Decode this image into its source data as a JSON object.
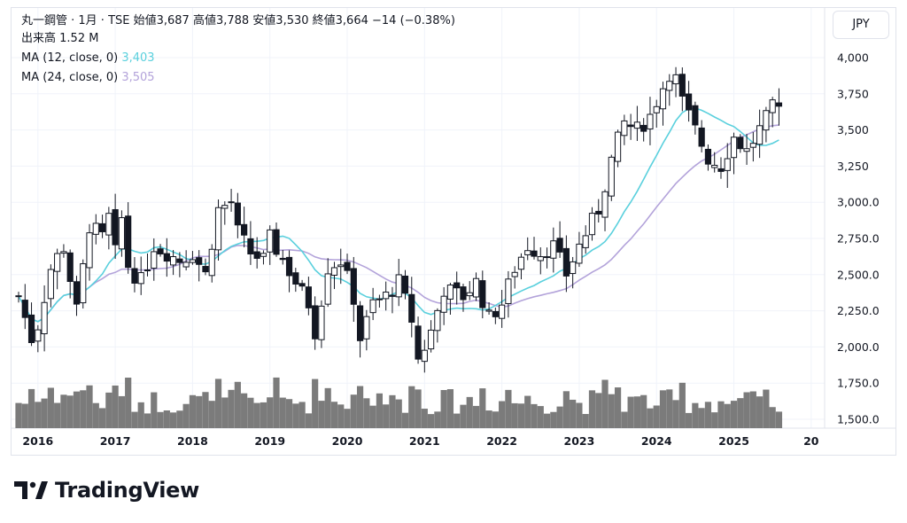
{
  "legend": {
    "main": "丸一鋼管 · 1月 · TSE  始値3,687  高値3,788  安値3,530  終値3,664  −14 (−0.38%)",
    "volume_label": "出来高",
    "volume_value": "1.52 M",
    "ma12_label": "MA (12, close, 0)",
    "ma12_value": "3,403",
    "ma24_label": "MA (24, close, 0)",
    "ma24_value": "3,505"
  },
  "currency": "JPY",
  "brand": {
    "name": "TradingView"
  },
  "colors": {
    "up": "#131722",
    "down": "#131722",
    "ma12": "#5ad0dd",
    "ma24": "#b3a3da",
    "volume": "#7b7b7b",
    "grid": "#f0f3fa"
  },
  "chart_data": {
    "type": "candlestick",
    "interval": "1M",
    "ylim": [
      1500,
      4000
    ],
    "y_ticks": [
      "4,000",
      "3,750",
      "3,500",
      "3,250",
      "3,000.0",
      "2,750.0",
      "2,500.0",
      "2,250.0",
      "2,000.0",
      "1,750.0",
      "1,500.0"
    ],
    "y_tick_values": [
      4000,
      3750,
      3500,
      3250,
      3000,
      2750,
      2500,
      2250,
      2000,
      1750,
      1500
    ],
    "x_ticks": [
      "2016",
      "2017",
      "2018",
      "2019",
      "2020",
      "2021",
      "2022",
      "2023",
      "2024",
      "2025",
      "20"
    ],
    "start_year": 2015,
    "start_month": 10,
    "ohlc_anchors": [
      [
        2015.75,
        2350
      ],
      [
        2015.92,
        2050
      ],
      [
        2016.0,
        2150
      ],
      [
        2016.17,
        2550
      ],
      [
        2016.33,
        2700
      ],
      [
        2016.5,
        2250
      ],
      [
        2016.67,
        2850
      ],
      [
        2016.83,
        2750
      ],
      [
        2016.92,
        2900
      ],
      [
        2017.0,
        2650
      ],
      [
        2017.08,
        2900
      ],
      [
        2017.17,
        2550
      ],
      [
        2017.33,
        2450
      ],
      [
        2017.5,
        2700
      ],
      [
        2017.67,
        2650
      ],
      [
        2017.83,
        2600
      ],
      [
        2018.0,
        2650
      ],
      [
        2018.17,
        2500
      ],
      [
        2018.33,
        2950
      ],
      [
        2018.5,
        3000
      ],
      [
        2018.58,
        2800
      ],
      [
        2018.75,
        2650
      ],
      [
        2018.92,
        2600
      ],
      [
        2019.0,
        2750
      ],
      [
        2019.17,
        2600
      ],
      [
        2019.33,
        2450
      ],
      [
        2019.5,
        2300
      ],
      [
        2019.58,
        2100
      ],
      [
        2019.75,
        2550
      ],
      [
        2019.92,
        2600
      ],
      [
        2020.08,
        2350
      ],
      [
        2020.17,
        2050
      ],
      [
        2020.33,
        2300
      ],
      [
        2020.5,
        2350
      ],
      [
        2020.67,
        2450
      ],
      [
        2020.83,
        2200
      ],
      [
        2020.92,
        1900
      ],
      [
        2021.08,
        2100
      ],
      [
        2021.25,
        2400
      ],
      [
        2021.5,
        2350
      ],
      [
        2021.67,
        2450
      ],
      [
        2021.83,
        2200
      ],
      [
        2022.0,
        2300
      ],
      [
        2022.17,
        2550
      ],
      [
        2022.33,
        2700
      ],
      [
        2022.5,
        2650
      ],
      [
        2022.67,
        2700
      ],
      [
        2022.83,
        2500
      ],
      [
        2023.0,
        2700
      ],
      [
        2023.25,
        2950
      ],
      [
        2023.42,
        3300
      ],
      [
        2023.58,
        3550
      ],
      [
        2023.75,
        3500
      ],
      [
        2023.92,
        3600
      ],
      [
        2024.0,
        3700
      ],
      [
        2024.17,
        3900
      ],
      [
        2024.25,
        3850
      ],
      [
        2024.33,
        3700
      ],
      [
        2024.5,
        3500
      ],
      [
        2024.67,
        3300
      ],
      [
        2024.83,
        3250
      ],
      [
        2025.0,
        3450
      ],
      [
        2025.17,
        3350
      ],
      [
        2025.33,
        3500
      ],
      [
        2025.5,
        3650
      ],
      [
        2025.58,
        3664
      ]
    ],
    "last_candle": {
      "open": 3687,
      "high": 3788,
      "low": 3530,
      "close": 3664
    },
    "volume_range_millions": [
      0,
      4.5
    ]
  }
}
